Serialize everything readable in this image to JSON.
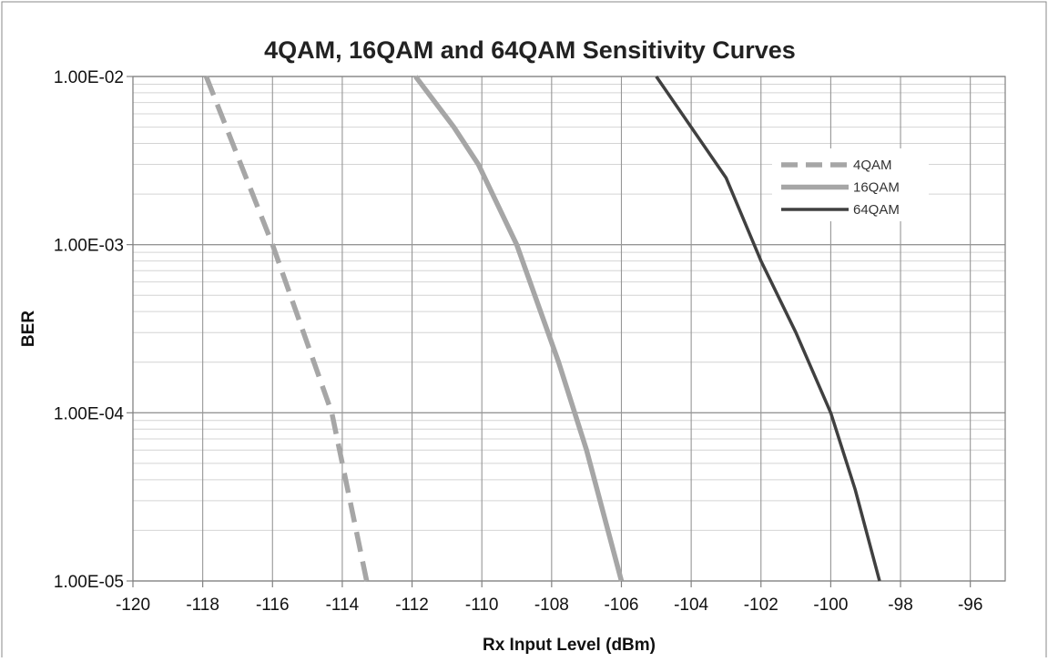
{
  "chart_data": {
    "type": "line",
    "title": "4QAM, 16QAM and 64QAM Sensitivity Curves",
    "xlabel": "Rx Input Level (dBm)",
    "ylabel": "BER",
    "xlim": [
      -120,
      -95
    ],
    "ylim": [
      1e-05,
      0.01
    ],
    "yscale": "log",
    "grid": true,
    "legend_position": "top-right",
    "x_ticks": [
      -120,
      -118,
      -116,
      -114,
      -112,
      -110,
      -108,
      -106,
      -104,
      -102,
      -100,
      -98,
      -96
    ],
    "x_tick_labels": [
      "-120",
      "-118",
      "-116",
      "-114",
      "-112",
      "-110",
      "-108",
      "-106",
      "-104",
      "-102",
      "-100",
      "-98",
      "-96"
    ],
    "y_ticks": [
      0.01,
      0.001,
      0.0001,
      1e-05
    ],
    "y_tick_labels": [
      "1.00E-02",
      "1.00E-03",
      "1.00E-04",
      "1.00E-05"
    ],
    "series": [
      {
        "name": "4QAM",
        "color": "#a6a6a6",
        "style": "dashed",
        "points": [
          [
            -117.9,
            0.01
          ],
          [
            -116.0,
            0.001
          ],
          [
            -114.3,
            0.0001
          ],
          [
            -113.3,
            1e-05
          ]
        ]
      },
      {
        "name": "16QAM",
        "color": "#a6a6a6",
        "style": "solid",
        "points": [
          [
            -111.9,
            0.01
          ],
          [
            -110.8,
            0.005
          ],
          [
            -110.1,
            0.003
          ],
          [
            -109.0,
            0.001
          ],
          [
            -107.8,
            0.0002
          ],
          [
            -107.0,
            6e-05
          ],
          [
            -106.0,
            1e-05
          ]
        ]
      },
      {
        "name": "64QAM",
        "color": "#404040",
        "style": "solid",
        "points": [
          [
            -105.0,
            0.01
          ],
          [
            -104.0,
            0.005
          ],
          [
            -103.0,
            0.0025
          ],
          [
            -102.0,
            0.0008
          ],
          [
            -101.0,
            0.0003
          ],
          [
            -100.0,
            0.0001
          ],
          [
            -99.3,
            3.5e-05
          ],
          [
            -98.6,
            1e-05
          ]
        ]
      }
    ]
  }
}
